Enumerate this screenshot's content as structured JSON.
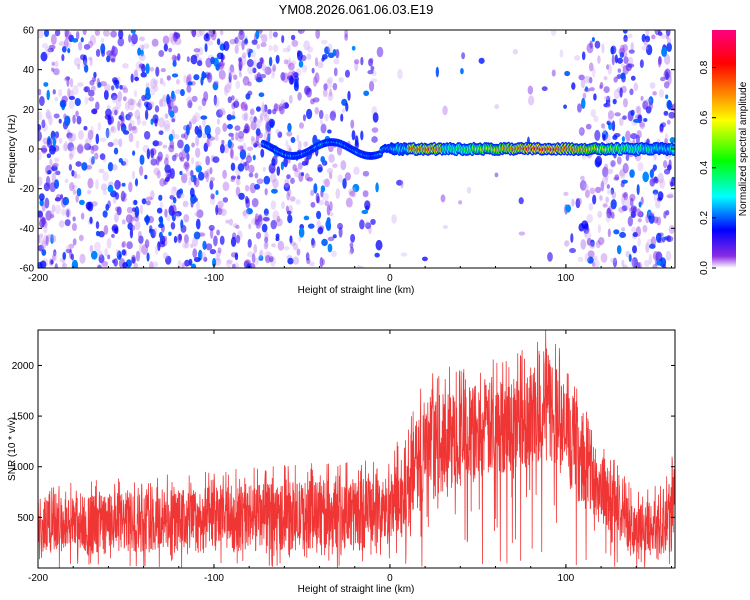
{
  "title": "YM08.2026.061.06.03.E19",
  "colors": {
    "snr_line": "#f03535",
    "axis": "#000000"
  },
  "chart_data": [
    {
      "type": "heatmap",
      "name": "spectrogram",
      "xlabel": "Height of straight line (km)",
      "ylabel": "Frequency (Hz)",
      "xlim": [
        -200,
        162
      ],
      "ylim": [
        -60,
        60
      ],
      "xticks": [
        -200,
        -100,
        0,
        100
      ],
      "xtick_labels": [
        "-200",
        "-100",
        "0",
        "100"
      ],
      "yticks": [
        -60,
        -40,
        -20,
        0,
        20,
        40,
        60
      ],
      "ytick_labels": [
        "-60",
        "-40",
        "-20",
        "0",
        "20",
        "40",
        "60"
      ],
      "colorbar": {
        "label": "Normalized spectral amplitude",
        "range": [
          0,
          0.95
        ],
        "ticks": [
          0.0,
          0.2,
          0.4,
          0.6,
          0.8
        ],
        "tick_labels": [
          "0.0",
          "0.2",
          "0.4",
          "0.6",
          "0.8"
        ],
        "colormap": [
          "#ffffff",
          "#8a2be2",
          "#0000ff",
          "#00ffff",
          "#00ff00",
          "#ffff00",
          "#ff8000",
          "#ff0000",
          "#ff0080"
        ]
      },
      "features": {
        "scatter_regions_km": [
          [
            -200,
            -5
          ],
          [
            98,
            162
          ]
        ],
        "sparse_region_km": [
          -5,
          98
        ],
        "band_frequency_hz": 0,
        "band_start_km": -72,
        "band_end_km": 162,
        "peak_km": 88,
        "peak_amplitude": 0.95
      }
    },
    {
      "type": "line",
      "name": "snr",
      "xlabel": "Height of straight line (km)",
      "ylabel": "SNR (10 * v/v)",
      "xlim": [
        -200,
        162
      ],
      "ylim": [
        0,
        2350
      ],
      "xticks": [
        -200,
        -100,
        0,
        100
      ],
      "xtick_labels": [
        "-200",
        "-100",
        "0",
        "100"
      ],
      "yticks": [
        500,
        1000,
        1500,
        2000
      ],
      "ytick_labels": [
        "500",
        "1000",
        "1500",
        "2000"
      ],
      "envelope": {
        "x": [
          -200,
          -150,
          -100,
          -60,
          -30,
          0,
          10,
          15,
          20,
          40,
          60,
          80,
          90,
          100,
          110,
          120,
          130,
          140,
          150,
          162
        ],
        "lower": [
          150,
          150,
          160,
          170,
          190,
          200,
          300,
          500,
          650,
          800,
          900,
          1000,
          1050,
          850,
          600,
          400,
          250,
          150,
          120,
          150
        ],
        "upper": [
          700,
          750,
          800,
          850,
          880,
          920,
          1250,
          1450,
          1650,
          1800,
          1850,
          2000,
          2200,
          1800,
          1500,
          1150,
          850,
          650,
          650,
          1050
        ]
      }
    }
  ]
}
